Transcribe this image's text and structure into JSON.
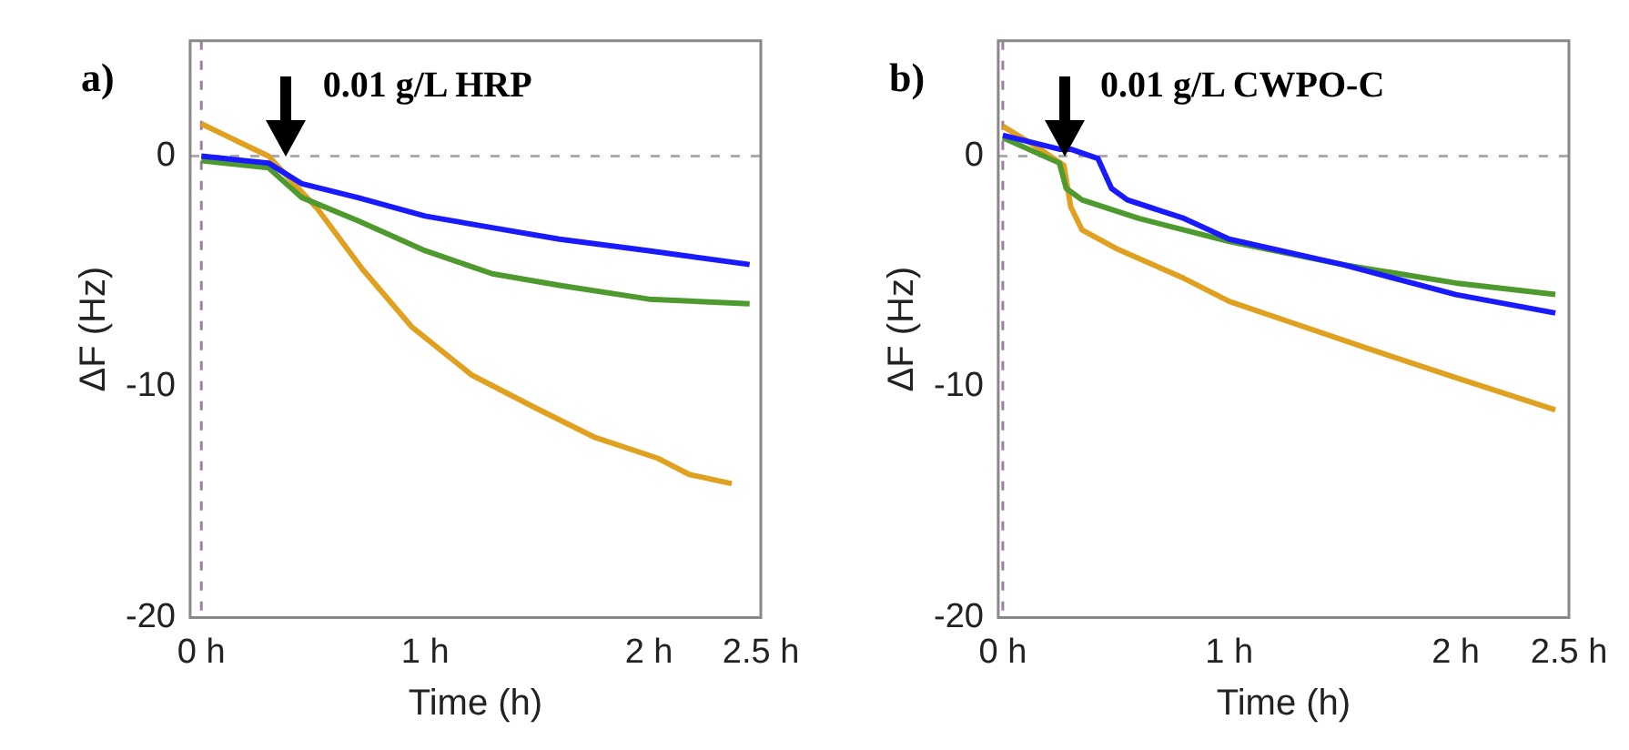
{
  "chart_data": [
    {
      "type": "line",
      "title": "a)",
      "xlabel": "Time (h)",
      "ylabel": "ΔF (Hz)",
      "marker": "none",
      "grid": false,
      "legend": false,
      "xlim": [
        -0.05,
        2.5
      ],
      "xticks": [
        {
          "value": 0,
          "label": "0 h"
        },
        {
          "value": 1,
          "label": "1 h"
        },
        {
          "value": 2,
          "label": "2 h"
        },
        {
          "value": 2.5,
          "label": "2.5 h"
        }
      ],
      "ylim": [
        -20,
        5
      ],
      "yticks": [
        -20,
        -10,
        0
      ],
      "ref_lines": [
        {
          "axis": "y",
          "value": 0,
          "color": "#aaaaaa",
          "line_style": "dashed"
        },
        {
          "axis": "x",
          "value": 0,
          "color": "#9a7fa0",
          "line_style": "dashed"
        }
      ],
      "annotations": [
        {
          "text": "0.01 g/L HRP",
          "x": 0.38,
          "y": 0
        }
      ],
      "series": [
        {
          "color": "#1a1aff",
          "x": [
            0,
            0.3,
            0.45,
            0.7,
            1.0,
            1.3,
            1.6,
            2.0,
            2.45
          ],
          "values": [
            0,
            -0.3,
            -1.2,
            -1.8,
            -2.6,
            -3.1,
            -3.6,
            -4.1,
            -4.7
          ]
        },
        {
          "color": "#4e9a2e",
          "x": [
            0,
            0.3,
            0.45,
            0.7,
            1.0,
            1.3,
            1.6,
            2.0,
            2.45
          ],
          "values": [
            -0.2,
            -0.5,
            -1.8,
            -2.8,
            -4.1,
            -5.1,
            -5.6,
            -6.2,
            -6.4
          ]
        },
        {
          "color": "#e0a020",
          "x": [
            0,
            0.3,
            0.52,
            0.72,
            0.94,
            1.21,
            1.49,
            1.76,
            2.04,
            2.18,
            2.37
          ],
          "values": [
            1.4,
            0,
            -2.3,
            -4.9,
            -7.4,
            -9.5,
            -10.9,
            -12.2,
            -13.1,
            -13.8,
            -14.2
          ]
        }
      ]
    },
    {
      "type": "line",
      "title": "b)",
      "xlabel": "Time (h)",
      "ylabel": "ΔF (Hz)",
      "marker": "none",
      "grid": false,
      "legend": false,
      "xlim": [
        -0.02,
        2.5
      ],
      "xticks": [
        {
          "value": 0,
          "label": "0 h"
        },
        {
          "value": 1,
          "label": "1 h"
        },
        {
          "value": 2,
          "label": "2 h"
        },
        {
          "value": 2.5,
          "label": "2.5 h"
        }
      ],
      "ylim": [
        -20,
        5
      ],
      "yticks": [
        -20,
        -10,
        0
      ],
      "ref_lines": [
        {
          "axis": "y",
          "value": 0,
          "color": "#aaaaaa",
          "line_style": "dashed"
        },
        {
          "axis": "x",
          "value": 0,
          "color": "#9a7fa0",
          "line_style": "dashed"
        }
      ],
      "annotations": [
        {
          "text": "0.01 g/L CWPO-C",
          "x": 0.27,
          "y": 0
        }
      ],
      "series": [
        {
          "color": "#1a1aff",
          "x": [
            0,
            0.25,
            0.3,
            0.42,
            0.48,
            0.55,
            0.8,
            1.0,
            1.5,
            2.0,
            2.44
          ],
          "values": [
            0.9,
            0.3,
            0.3,
            -0.1,
            -1.4,
            -1.9,
            -2.7,
            -3.6,
            -4.7,
            -6.0,
            -6.8
          ]
        },
        {
          "color": "#4e9a2e",
          "x": [
            0,
            0.25,
            0.28,
            0.35,
            0.6,
            1.0,
            1.5,
            2.0,
            2.44
          ],
          "values": [
            0.8,
            -0.3,
            -1.4,
            -1.9,
            -2.7,
            -3.7,
            -4.7,
            -5.5,
            -6.0
          ]
        },
        {
          "color": "#e0a020",
          "x": [
            0,
            0.15,
            0.27,
            0.3,
            0.35,
            0.5,
            0.8,
            1.0,
            1.3,
            1.6,
            2.0,
            2.44
          ],
          "values": [
            1.3,
            0.4,
            -0.4,
            -2.2,
            -3.2,
            -4.0,
            -5.3,
            -6.3,
            -7.3,
            -8.3,
            -9.6,
            -11.0
          ]
        }
      ]
    }
  ]
}
